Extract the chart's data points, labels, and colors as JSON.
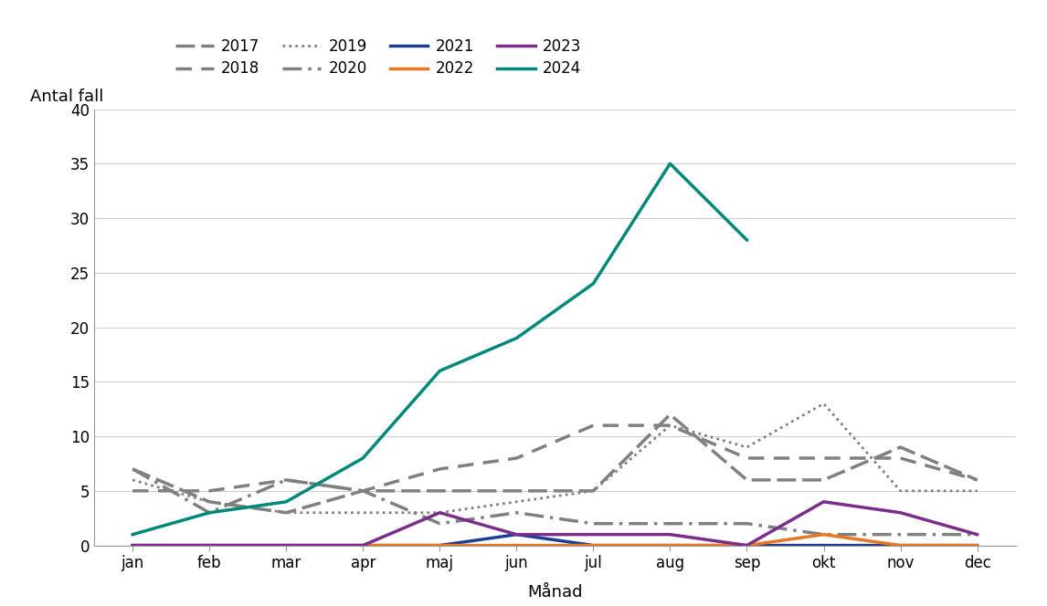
{
  "months": [
    "jan",
    "feb",
    "mar",
    "apr",
    "maj",
    "jun",
    "jul",
    "aug",
    "sep",
    "okt",
    "nov",
    "dec"
  ],
  "series": {
    "2017": [
      7,
      4,
      3,
      5,
      5,
      5,
      5,
      12,
      6,
      6,
      9,
      6
    ],
    "2018": [
      5,
      5,
      6,
      5,
      7,
      8,
      11,
      11,
      8,
      8,
      8,
      6
    ],
    "2019": [
      6,
      4,
      3,
      3,
      3,
      4,
      5,
      11,
      9,
      13,
      5,
      5
    ],
    "2020": [
      7,
      3,
      6,
      5,
      2,
      3,
      2,
      2,
      2,
      1,
      1,
      1
    ],
    "2021": [
      0,
      0,
      0,
      0,
      0,
      1,
      0,
      0,
      0,
      0,
      0,
      0
    ],
    "2022": [
      0,
      0,
      0,
      0,
      0,
      0,
      0,
      0,
      0,
      1,
      0,
      0
    ],
    "2023": [
      0,
      0,
      0,
      0,
      3,
      1,
      1,
      1,
      0,
      4,
      3,
      1
    ],
    "2024": [
      1,
      3,
      4,
      8,
      16,
      19,
      24,
      35,
      28,
      null,
      null,
      null
    ]
  },
  "colors": {
    "2017": "#808080",
    "2018": "#808080",
    "2019": "#808080",
    "2020": "#808080",
    "2021": "#1c3f94",
    "2022": "#e87722",
    "2023": "#7b2d8b",
    "2024": "#00897b"
  },
  "ylabel": "Antal fall",
  "xlabel": "Månad",
  "ylim": [
    0,
    40
  ],
  "yticks": [
    0,
    5,
    10,
    15,
    20,
    25,
    30,
    35,
    40
  ],
  "background_color": "#ffffff",
  "grid_color": "#cccccc",
  "legend_rows": [
    [
      "2017",
      "2018",
      "2019",
      "2020"
    ],
    [
      "2021",
      "2022",
      "2023",
      "2024"
    ]
  ]
}
